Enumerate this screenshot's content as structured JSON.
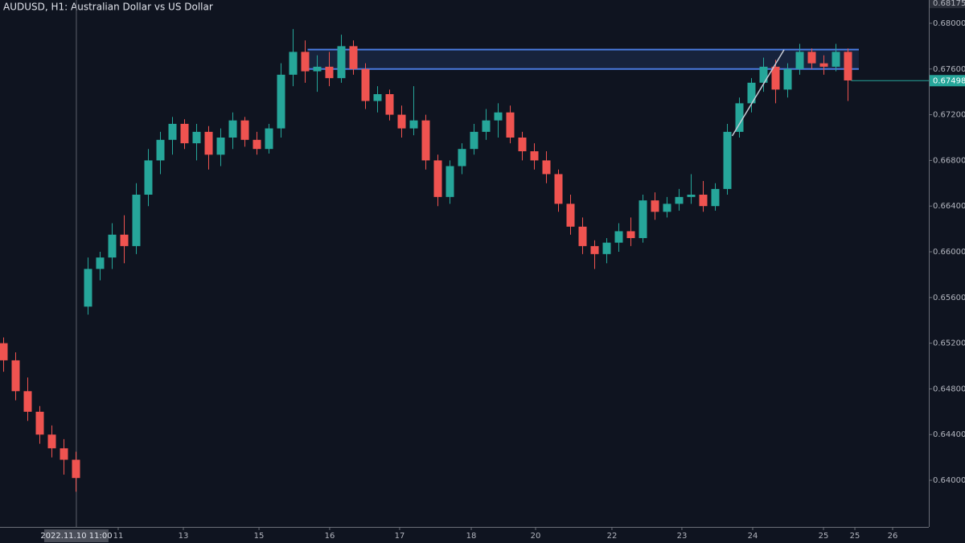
{
  "chart_data": {
    "type": "candlestick",
    "title": "AUDUSD, H1: Australian Dollar vs US Dollar",
    "up_color": "#26a69a",
    "down_color": "#ef5350",
    "x": [
      0,
      1,
      2,
      3,
      4,
      5,
      6,
      7,
      8,
      9,
      10,
      11,
      12,
      13,
      14,
      15,
      16,
      17,
      18,
      19,
      20,
      21,
      22,
      23,
      24,
      25,
      26,
      27,
      28,
      29,
      30,
      31,
      32,
      33,
      34,
      35,
      36,
      37,
      38,
      39,
      40,
      41,
      42,
      43,
      44,
      45,
      46,
      47,
      48,
      49,
      50,
      51,
      52,
      53,
      54,
      55,
      56,
      57,
      58,
      59,
      60,
      61,
      62,
      63,
      64,
      65,
      66,
      67,
      68,
      69,
      70
    ],
    "open": [
      0.652,
      0.6505,
      0.6478,
      0.646,
      0.644,
      0.6428,
      0.6418,
      0.6552,
      0.6585,
      0.6595,
      0.6615,
      0.6605,
      0.665,
      0.668,
      0.6698,
      0.6712,
      0.6695,
      0.6705,
      0.6685,
      0.67,
      0.6715,
      0.6698,
      0.669,
      0.6708,
      0.6755,
      0.6775,
      0.6758,
      0.6762,
      0.6752,
      0.678,
      0.676,
      0.6732,
      0.6738,
      0.672,
      0.6708,
      0.6715,
      0.668,
      0.6648,
      0.6675,
      0.669,
      0.6705,
      0.6715,
      0.6722,
      0.67,
      0.6688,
      0.668,
      0.6668,
      0.6642,
      0.6622,
      0.6605,
      0.6598,
      0.6608,
      0.6618,
      0.6612,
      0.6645,
      0.6635,
      0.6642,
      0.6648,
      0.665,
      0.664,
      0.6655,
      0.6705,
      0.673,
      0.6748,
      0.6762,
      0.6742,
      0.676,
      0.6775,
      0.6765,
      0.6762,
      0.6775
    ],
    "high": [
      0.6525,
      0.6512,
      0.649,
      0.6465,
      0.6448,
      0.6436,
      0.6425,
      0.6595,
      0.66,
      0.6625,
      0.6632,
      0.666,
      0.669,
      0.6705,
      0.6718,
      0.6716,
      0.6712,
      0.671,
      0.6708,
      0.6722,
      0.6718,
      0.6705,
      0.6712,
      0.6765,
      0.6795,
      0.6785,
      0.6772,
      0.6775,
      0.679,
      0.6785,
      0.6765,
      0.6745,
      0.6742,
      0.6728,
      0.6745,
      0.672,
      0.6685,
      0.668,
      0.6695,
      0.6712,
      0.6725,
      0.673,
      0.6728,
      0.6705,
      0.6695,
      0.6688,
      0.6672,
      0.665,
      0.663,
      0.661,
      0.6612,
      0.6625,
      0.663,
      0.665,
      0.6652,
      0.6648,
      0.6655,
      0.6668,
      0.6662,
      0.666,
      0.6712,
      0.6735,
      0.6752,
      0.677,
      0.6768,
      0.6765,
      0.6782,
      0.6778,
      0.6772,
      0.6782,
      0.6778
    ],
    "low": [
      0.6495,
      0.647,
      0.6452,
      0.6432,
      0.642,
      0.6405,
      0.639,
      0.6545,
      0.6575,
      0.6585,
      0.659,
      0.6598,
      0.664,
      0.6668,
      0.6685,
      0.669,
      0.668,
      0.6672,
      0.6675,
      0.669,
      0.6692,
      0.6685,
      0.6686,
      0.67,
      0.6745,
      0.6748,
      0.674,
      0.6745,
      0.6748,
      0.6755,
      0.6725,
      0.6722,
      0.6715,
      0.67,
      0.6702,
      0.6672,
      0.664,
      0.6642,
      0.6668,
      0.6685,
      0.6698,
      0.67,
      0.6695,
      0.668,
      0.6672,
      0.666,
      0.6635,
      0.6615,
      0.6598,
      0.6585,
      0.659,
      0.66,
      0.6605,
      0.6608,
      0.6628,
      0.663,
      0.6636,
      0.6642,
      0.6635,
      0.6636,
      0.665,
      0.67,
      0.6722,
      0.674,
      0.673,
      0.6735,
      0.6755,
      0.676,
      0.6755,
      0.6758,
      0.6732
    ],
    "close": [
      0.6505,
      0.6478,
      0.646,
      0.644,
      0.6428,
      0.6418,
      0.6402,
      0.6585,
      0.6595,
      0.6615,
      0.6605,
      0.665,
      0.668,
      0.6698,
      0.6712,
      0.6695,
      0.6705,
      0.6685,
      0.67,
      0.6715,
      0.6698,
      0.669,
      0.6708,
      0.6755,
      0.6775,
      0.6758,
      0.6762,
      0.6752,
      0.678,
      0.676,
      0.6732,
      0.6738,
      0.672,
      0.6708,
      0.6715,
      0.668,
      0.6648,
      0.6675,
      0.669,
      0.6705,
      0.6715,
      0.6722,
      0.67,
      0.6688,
      0.668,
      0.6668,
      0.6642,
      0.6622,
      0.6605,
      0.6598,
      0.6608,
      0.6618,
      0.6612,
      0.6645,
      0.6635,
      0.6642,
      0.6648,
      0.665,
      0.664,
      0.6655,
      0.6705,
      0.673,
      0.6748,
      0.6762,
      0.6742,
      0.676,
      0.6775,
      0.6765,
      0.6762,
      0.6775,
      0.675
    ],
    "xlim": [
      -0.3,
      76.7
    ],
    "ylim": [
      0.63592,
      0.68204
    ],
    "yticks": [
      {
        "value": 0.64,
        "label": "0.64000"
      },
      {
        "value": 0.644,
        "label": "0.64400"
      },
      {
        "value": 0.648,
        "label": "0.64800"
      },
      {
        "value": 0.652,
        "label": "0.65200"
      },
      {
        "value": 0.656,
        "label": "0.65600"
      },
      {
        "value": 0.66,
        "label": "0.66000"
      },
      {
        "value": 0.664,
        "label": "0.66400"
      },
      {
        "value": 0.668,
        "label": "0.66800"
      },
      {
        "value": 0.672,
        "label": "0.67200"
      },
      {
        "value": 0.676,
        "label": "0.67600"
      },
      {
        "value": 0.68,
        "label": "0.68000"
      }
    ],
    "xticks": [
      {
        "value": 9.5,
        "label": "11"
      },
      {
        "value": 14.9,
        "label": "13"
      },
      {
        "value": 21.17,
        "label": "15"
      },
      {
        "value": 27.03,
        "label": "16"
      },
      {
        "value": 32.83,
        "label": "17"
      },
      {
        "value": 38.77,
        "label": "18"
      },
      {
        "value": 44.1,
        "label": "20"
      },
      {
        "value": 50.43,
        "label": "22"
      },
      {
        "value": 56.23,
        "label": "23"
      },
      {
        "value": 62.1,
        "label": "24"
      },
      {
        "value": 67.97,
        "label": "25"
      },
      {
        "value": 70.57,
        "label": "25"
      },
      {
        "value": 73.7,
        "label": "26"
      }
    ],
    "crosshair": {
      "value": 6.03,
      "label": "2022.11.10 11:00"
    },
    "top_price_label": {
      "value": 0.68175,
      "label": "0.68175"
    },
    "last_price": {
      "value": 0.67498,
      "label": "0.67498",
      "color": "#26a69a"
    },
    "zone": {
      "x": [
        25.2,
        70.9
      ],
      "y": [
        0.676,
        0.6777
      ],
      "color": "#4a7be0"
    },
    "trend_line": {
      "x": [
        60.4,
        64.7
      ],
      "y": [
        0.67014,
        0.67768
      ],
      "color": "#c8ccd6"
    }
  }
}
